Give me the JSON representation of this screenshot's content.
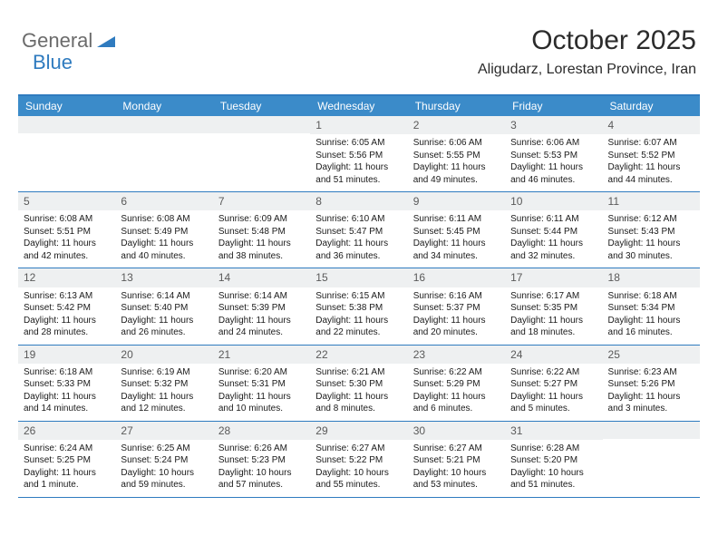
{
  "logo": {
    "text1": "General",
    "text2": "Blue"
  },
  "title": "October 2025",
  "location": "Aligudarz, Lorestan Province, Iran",
  "colors": {
    "header_bg": "#3b8bc9",
    "border": "#2f7bbf",
    "daynum_bg": "#eef0f1",
    "text": "#1a1a1a",
    "logo_gray": "#6b6b6b",
    "logo_blue": "#2f7bbf"
  },
  "day_names": [
    "Sunday",
    "Monday",
    "Tuesday",
    "Wednesday",
    "Thursday",
    "Friday",
    "Saturday"
  ],
  "weeks": [
    [
      null,
      null,
      null,
      {
        "n": "1",
        "sr": "Sunrise: 6:05 AM",
        "ss": "Sunset: 5:56 PM",
        "dl": "Daylight: 11 hours and 51 minutes."
      },
      {
        "n": "2",
        "sr": "Sunrise: 6:06 AM",
        "ss": "Sunset: 5:55 PM",
        "dl": "Daylight: 11 hours and 49 minutes."
      },
      {
        "n": "3",
        "sr": "Sunrise: 6:06 AM",
        "ss": "Sunset: 5:53 PM",
        "dl": "Daylight: 11 hours and 46 minutes."
      },
      {
        "n": "4",
        "sr": "Sunrise: 6:07 AM",
        "ss": "Sunset: 5:52 PM",
        "dl": "Daylight: 11 hours and 44 minutes."
      }
    ],
    [
      {
        "n": "5",
        "sr": "Sunrise: 6:08 AM",
        "ss": "Sunset: 5:51 PM",
        "dl": "Daylight: 11 hours and 42 minutes."
      },
      {
        "n": "6",
        "sr": "Sunrise: 6:08 AM",
        "ss": "Sunset: 5:49 PM",
        "dl": "Daylight: 11 hours and 40 minutes."
      },
      {
        "n": "7",
        "sr": "Sunrise: 6:09 AM",
        "ss": "Sunset: 5:48 PM",
        "dl": "Daylight: 11 hours and 38 minutes."
      },
      {
        "n": "8",
        "sr": "Sunrise: 6:10 AM",
        "ss": "Sunset: 5:47 PM",
        "dl": "Daylight: 11 hours and 36 minutes."
      },
      {
        "n": "9",
        "sr": "Sunrise: 6:11 AM",
        "ss": "Sunset: 5:45 PM",
        "dl": "Daylight: 11 hours and 34 minutes."
      },
      {
        "n": "10",
        "sr": "Sunrise: 6:11 AM",
        "ss": "Sunset: 5:44 PM",
        "dl": "Daylight: 11 hours and 32 minutes."
      },
      {
        "n": "11",
        "sr": "Sunrise: 6:12 AM",
        "ss": "Sunset: 5:43 PM",
        "dl": "Daylight: 11 hours and 30 minutes."
      }
    ],
    [
      {
        "n": "12",
        "sr": "Sunrise: 6:13 AM",
        "ss": "Sunset: 5:42 PM",
        "dl": "Daylight: 11 hours and 28 minutes."
      },
      {
        "n": "13",
        "sr": "Sunrise: 6:14 AM",
        "ss": "Sunset: 5:40 PM",
        "dl": "Daylight: 11 hours and 26 minutes."
      },
      {
        "n": "14",
        "sr": "Sunrise: 6:14 AM",
        "ss": "Sunset: 5:39 PM",
        "dl": "Daylight: 11 hours and 24 minutes."
      },
      {
        "n": "15",
        "sr": "Sunrise: 6:15 AM",
        "ss": "Sunset: 5:38 PM",
        "dl": "Daylight: 11 hours and 22 minutes."
      },
      {
        "n": "16",
        "sr": "Sunrise: 6:16 AM",
        "ss": "Sunset: 5:37 PM",
        "dl": "Daylight: 11 hours and 20 minutes."
      },
      {
        "n": "17",
        "sr": "Sunrise: 6:17 AM",
        "ss": "Sunset: 5:35 PM",
        "dl": "Daylight: 11 hours and 18 minutes."
      },
      {
        "n": "18",
        "sr": "Sunrise: 6:18 AM",
        "ss": "Sunset: 5:34 PM",
        "dl": "Daylight: 11 hours and 16 minutes."
      }
    ],
    [
      {
        "n": "19",
        "sr": "Sunrise: 6:18 AM",
        "ss": "Sunset: 5:33 PM",
        "dl": "Daylight: 11 hours and 14 minutes."
      },
      {
        "n": "20",
        "sr": "Sunrise: 6:19 AM",
        "ss": "Sunset: 5:32 PM",
        "dl": "Daylight: 11 hours and 12 minutes."
      },
      {
        "n": "21",
        "sr": "Sunrise: 6:20 AM",
        "ss": "Sunset: 5:31 PM",
        "dl": "Daylight: 11 hours and 10 minutes."
      },
      {
        "n": "22",
        "sr": "Sunrise: 6:21 AM",
        "ss": "Sunset: 5:30 PM",
        "dl": "Daylight: 11 hours and 8 minutes."
      },
      {
        "n": "23",
        "sr": "Sunrise: 6:22 AM",
        "ss": "Sunset: 5:29 PM",
        "dl": "Daylight: 11 hours and 6 minutes."
      },
      {
        "n": "24",
        "sr": "Sunrise: 6:22 AM",
        "ss": "Sunset: 5:27 PM",
        "dl": "Daylight: 11 hours and 5 minutes."
      },
      {
        "n": "25",
        "sr": "Sunrise: 6:23 AM",
        "ss": "Sunset: 5:26 PM",
        "dl": "Daylight: 11 hours and 3 minutes."
      }
    ],
    [
      {
        "n": "26",
        "sr": "Sunrise: 6:24 AM",
        "ss": "Sunset: 5:25 PM",
        "dl": "Daylight: 11 hours and 1 minute."
      },
      {
        "n": "27",
        "sr": "Sunrise: 6:25 AM",
        "ss": "Sunset: 5:24 PM",
        "dl": "Daylight: 10 hours and 59 minutes."
      },
      {
        "n": "28",
        "sr": "Sunrise: 6:26 AM",
        "ss": "Sunset: 5:23 PM",
        "dl": "Daylight: 10 hours and 57 minutes."
      },
      {
        "n": "29",
        "sr": "Sunrise: 6:27 AM",
        "ss": "Sunset: 5:22 PM",
        "dl": "Daylight: 10 hours and 55 minutes."
      },
      {
        "n": "30",
        "sr": "Sunrise: 6:27 AM",
        "ss": "Sunset: 5:21 PM",
        "dl": "Daylight: 10 hours and 53 minutes."
      },
      {
        "n": "31",
        "sr": "Sunrise: 6:28 AM",
        "ss": "Sunset: 5:20 PM",
        "dl": "Daylight: 10 hours and 51 minutes."
      },
      null
    ]
  ]
}
